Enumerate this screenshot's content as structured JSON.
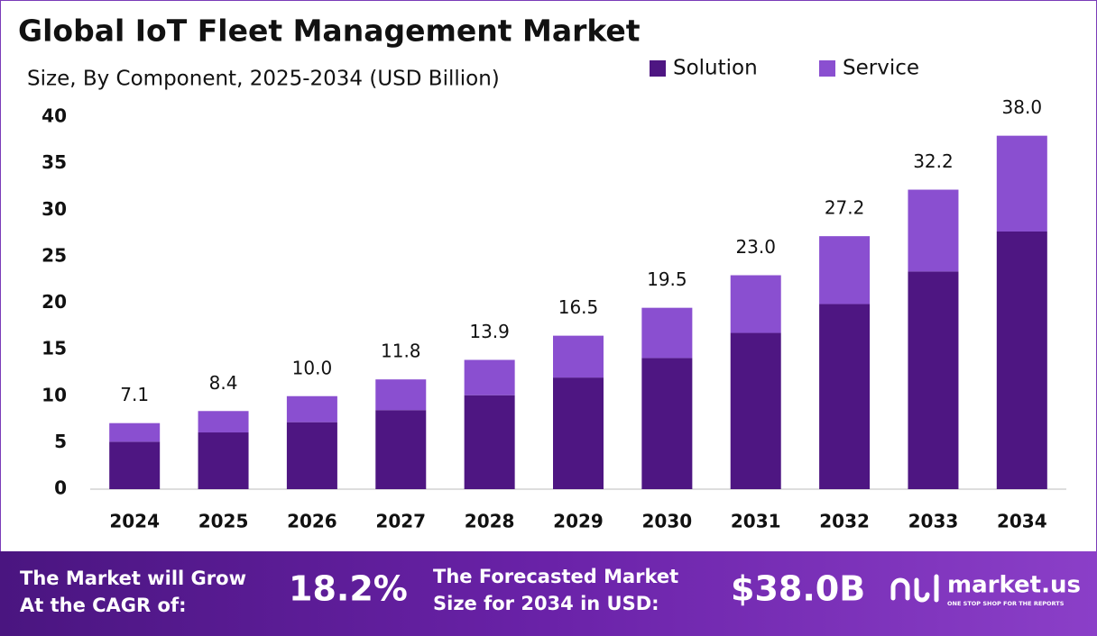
{
  "chart_data": {
    "type": "stacked-bar",
    "title": "Global IoT Fleet Management Market",
    "subtitle": "Size, By Component, 2025-2034 (USD Billion)",
    "categories": [
      "2024",
      "2025",
      "2026",
      "2027",
      "2028",
      "2029",
      "2030",
      "2031",
      "2032",
      "2033",
      "2034"
    ],
    "series": [
      {
        "name": "Solution",
        "color": "#4e1682",
        "values": [
          5.1,
          6.1,
          7.2,
          8.5,
          10.1,
          12.0,
          14.1,
          16.8,
          19.9,
          23.4,
          27.7
        ]
      },
      {
        "name": "Service",
        "color": "#8a4fd0",
        "values": [
          2.0,
          2.3,
          2.8,
          3.3,
          3.8,
          4.5,
          5.4,
          6.2,
          7.3,
          8.8,
          10.3
        ]
      }
    ],
    "totals": [
      7.1,
      8.4,
      10.0,
      11.8,
      13.9,
      16.5,
      19.5,
      23.0,
      27.2,
      32.2,
      38.0
    ],
    "total_labels": [
      "7.1",
      "8.4",
      "10.0",
      "11.8",
      "13.9",
      "16.5",
      "19.5",
      "23.0",
      "27.2",
      "32.2",
      "38.0"
    ],
    "ylim": [
      0,
      40
    ],
    "yticks": [
      0,
      5,
      10,
      15,
      20,
      25,
      30,
      35,
      40
    ],
    "grid": false,
    "legend": "top-right"
  },
  "footer": {
    "cagr_text": [
      "The Market will Grow",
      "At the CAGR of:"
    ],
    "cagr_value": "18.2%",
    "forecast_text": [
      "The Forecasted Market",
      "Size for 2034 in USD:"
    ],
    "forecast_value": "$38.0B",
    "brand": "market.us",
    "tagline": "ONE STOP SHOP FOR THE REPORTS"
  }
}
